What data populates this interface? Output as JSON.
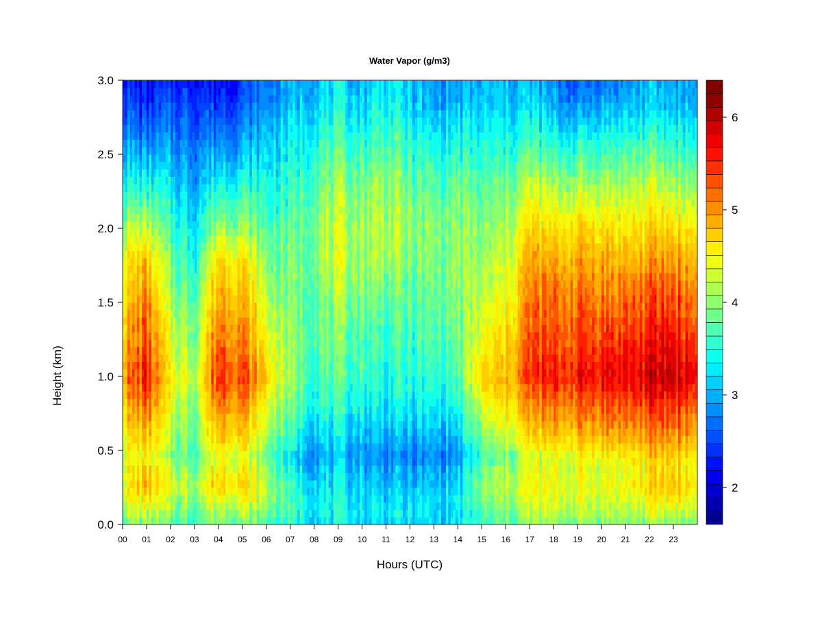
{
  "chart_data": {
    "type": "heatmap",
    "title": "Water Vapor (g/m3)",
    "xlabel": "Hours (UTC)",
    "ylabel": "Height (km)",
    "xlim": [
      0,
      24
    ],
    "ylim": [
      0.0,
      3.0
    ],
    "x_ticks": [
      "00",
      "01",
      "02",
      "03",
      "04",
      "05",
      "06",
      "07",
      "08",
      "09",
      "10",
      "11",
      "12",
      "13",
      "14",
      "15",
      "16",
      "17",
      "18",
      "19",
      "20",
      "21",
      "22",
      "23"
    ],
    "y_ticks": [
      "0.0",
      "0.5",
      "1.0",
      "1.5",
      "2.0",
      "2.5",
      "3.0"
    ],
    "colorbar": {
      "min": 1.6,
      "max": 6.4,
      "ticks": [
        "2",
        "3",
        "4",
        "5",
        "6"
      ],
      "levels": 24,
      "colors": [
        "#00008f",
        "#0000af",
        "#0000cf",
        "#0000ef",
        "#000fff",
        "#002fff",
        "#004fff",
        "#006fff",
        "#008fff",
        "#00afff",
        "#00cfff",
        "#00efff",
        "#10ffef",
        "#30ffcf",
        "#50ffaf",
        "#70ff8f",
        "#8fff70",
        "#afff50",
        "#cfff30",
        "#efff10",
        "#ffef00",
        "#ffcf00",
        "#ffaf00",
        "#ff8f00",
        "#ff6f00",
        "#ff4f00",
        "#ff2f00",
        "#ff0f00",
        "#ef0000",
        "#cf0000",
        "#af0000",
        "#8f0000",
        "#800000"
      ]
    },
    "heights_km": [
      0.0,
      0.1,
      0.25,
      0.4,
      0.45,
      0.6,
      0.8,
      1.0,
      1.2,
      1.4,
      1.6,
      1.8,
      2.0,
      2.3,
      2.6,
      2.85,
      3.0
    ],
    "hourly_profiles": [
      {
        "hour": 0,
        "values": [
          4.0,
          4.3,
          4.6,
          4.5,
          4.4,
          4.6,
          4.9,
          5.2,
          5.0,
          4.9,
          4.7,
          4.6,
          4.2,
          3.6,
          3.0,
          2.6,
          2.4
        ]
      },
      {
        "hour": 1,
        "values": [
          4.0,
          4.4,
          5.0,
          4.8,
          4.6,
          5.0,
          5.4,
          5.8,
          5.6,
          5.4,
          5.2,
          4.9,
          4.3,
          3.5,
          2.8,
          2.3,
          2.1
        ]
      },
      {
        "hour": 2,
        "values": [
          3.8,
          4.1,
          4.4,
          4.2,
          4.0,
          4.2,
          4.4,
          4.6,
          4.4,
          4.3,
          4.0,
          3.9,
          3.7,
          3.3,
          2.9,
          2.5,
          2.3
        ]
      },
      {
        "hour": 3,
        "values": [
          3.8,
          4.0,
          4.2,
          4.0,
          3.8,
          4.0,
          4.1,
          4.3,
          4.1,
          4.0,
          3.8,
          3.6,
          3.4,
          3.1,
          2.8,
          2.5,
          2.3
        ]
      },
      {
        "hour": 4,
        "values": [
          4.0,
          4.3,
          4.9,
          4.7,
          4.5,
          5.0,
          5.4,
          5.7,
          5.5,
          5.3,
          5.1,
          4.8,
          4.2,
          3.5,
          2.9,
          2.4,
          2.2
        ]
      },
      {
        "hour": 5,
        "values": [
          4.0,
          4.3,
          4.8,
          4.6,
          4.4,
          4.9,
          5.3,
          5.6,
          5.4,
          5.2,
          5.0,
          4.7,
          4.2,
          3.6,
          3.0,
          2.6,
          2.4
        ]
      },
      {
        "hour": 6,
        "values": [
          3.8,
          4.0,
          4.3,
          4.1,
          3.9,
          4.2,
          4.5,
          4.9,
          4.6,
          4.4,
          4.2,
          4.0,
          3.8,
          3.5,
          3.2,
          2.9,
          2.8
        ]
      },
      {
        "hour": 7,
        "values": [
          3.6,
          3.7,
          3.6,
          3.4,
          3.3,
          3.6,
          3.9,
          4.1,
          4.1,
          4.0,
          3.9,
          3.9,
          3.8,
          3.6,
          3.4,
          3.1,
          3.0
        ]
      },
      {
        "hour": 8,
        "values": [
          3.4,
          3.5,
          3.4,
          3.2,
          3.0,
          3.3,
          3.6,
          3.8,
          3.9,
          3.9,
          4.0,
          4.1,
          4.1,
          3.9,
          3.6,
          3.3,
          3.2
        ]
      },
      {
        "hour": 9,
        "values": [
          3.4,
          3.5,
          3.4,
          3.2,
          3.1,
          3.3,
          3.6,
          3.8,
          3.9,
          4.0,
          4.2,
          4.3,
          4.3,
          4.1,
          3.7,
          3.4,
          3.3
        ]
      },
      {
        "hour": 10,
        "values": [
          3.3,
          3.4,
          3.3,
          3.1,
          3.0,
          3.2,
          3.5,
          3.7,
          3.8,
          3.9,
          4.1,
          4.2,
          4.2,
          4.0,
          3.6,
          3.3,
          3.2
        ]
      },
      {
        "hour": 11,
        "values": [
          3.3,
          3.4,
          3.2,
          3.0,
          2.8,
          3.1,
          3.4,
          3.6,
          3.7,
          3.8,
          4.0,
          4.2,
          4.3,
          4.2,
          3.8,
          3.5,
          3.4
        ]
      },
      {
        "hour": 12,
        "values": [
          3.3,
          3.4,
          3.2,
          3.0,
          2.8,
          3.1,
          3.4,
          3.6,
          3.7,
          3.8,
          3.9,
          4.0,
          4.1,
          3.9,
          3.6,
          3.3,
          3.2
        ]
      },
      {
        "hour": 13,
        "values": [
          3.2,
          3.3,
          3.2,
          3.0,
          2.8,
          3.1,
          3.4,
          3.6,
          3.7,
          3.8,
          3.9,
          4.0,
          4.0,
          3.8,
          3.4,
          3.0,
          2.9
        ]
      },
      {
        "hour": 14,
        "values": [
          3.3,
          3.4,
          3.3,
          3.1,
          2.9,
          3.2,
          3.5,
          3.8,
          3.9,
          4.0,
          4.1,
          4.1,
          4.1,
          3.9,
          3.5,
          3.1,
          3.0
        ]
      },
      {
        "hour": 15,
        "values": [
          3.6,
          3.8,
          4.0,
          3.9,
          3.7,
          4.0,
          4.4,
          4.8,
          4.6,
          4.4,
          4.2,
          4.1,
          4.0,
          3.8,
          3.5,
          3.2,
          3.1
        ]
      },
      {
        "hour": 16,
        "values": [
          3.8,
          4.0,
          4.3,
          4.1,
          3.9,
          4.3,
          4.7,
          5.0,
          4.8,
          4.6,
          4.4,
          4.3,
          4.2,
          3.9,
          3.5,
          3.2,
          3.1
        ]
      },
      {
        "hour": 17,
        "values": [
          4.0,
          4.3,
          4.5,
          4.4,
          4.3,
          4.8,
          5.2,
          5.6,
          5.5,
          5.4,
          5.3,
          5.1,
          4.8,
          4.3,
          3.7,
          3.3,
          3.2
        ]
      },
      {
        "hour": 18,
        "values": [
          4.0,
          4.3,
          4.5,
          4.4,
          4.4,
          4.9,
          5.3,
          5.7,
          5.5,
          5.4,
          5.3,
          5.0,
          4.7,
          4.1,
          3.5,
          3.0,
          2.8
        ]
      },
      {
        "hour": 19,
        "values": [
          4.0,
          4.3,
          4.5,
          4.5,
          4.5,
          5.0,
          5.4,
          5.8,
          5.6,
          5.5,
          5.3,
          5.1,
          4.8,
          4.2,
          3.5,
          2.9,
          2.6
        ]
      },
      {
        "hour": 20,
        "values": [
          4.0,
          4.3,
          4.5,
          4.5,
          4.6,
          5.1,
          5.5,
          5.9,
          5.7,
          5.5,
          5.3,
          5.1,
          4.8,
          4.2,
          3.6,
          3.0,
          2.8
        ]
      },
      {
        "hour": 21,
        "values": [
          4.0,
          4.3,
          4.5,
          4.5,
          4.6,
          5.1,
          5.5,
          5.9,
          5.7,
          5.5,
          5.3,
          5.0,
          4.7,
          4.2,
          3.6,
          3.1,
          2.9
        ]
      },
      {
        "hour": 22,
        "values": [
          4.0,
          4.4,
          4.8,
          4.7,
          4.8,
          5.2,
          5.6,
          6.0,
          5.8,
          5.6,
          5.4,
          5.1,
          4.8,
          4.3,
          3.7,
          3.2,
          3.1
        ]
      },
      {
        "hour": 23,
        "values": [
          4.0,
          4.4,
          5.0,
          4.8,
          4.9,
          5.3,
          5.7,
          6.1,
          5.9,
          5.7,
          5.5,
          5.2,
          4.8,
          4.2,
          3.6,
          3.2,
          3.1
        ]
      },
      {
        "hour": 24,
        "values": [
          4.0,
          4.3,
          4.6,
          4.5,
          4.6,
          5.0,
          5.4,
          5.8,
          5.6,
          5.4,
          5.2,
          5.0,
          4.6,
          4.1,
          3.5,
          3.1,
          3.0
        ]
      }
    ]
  }
}
